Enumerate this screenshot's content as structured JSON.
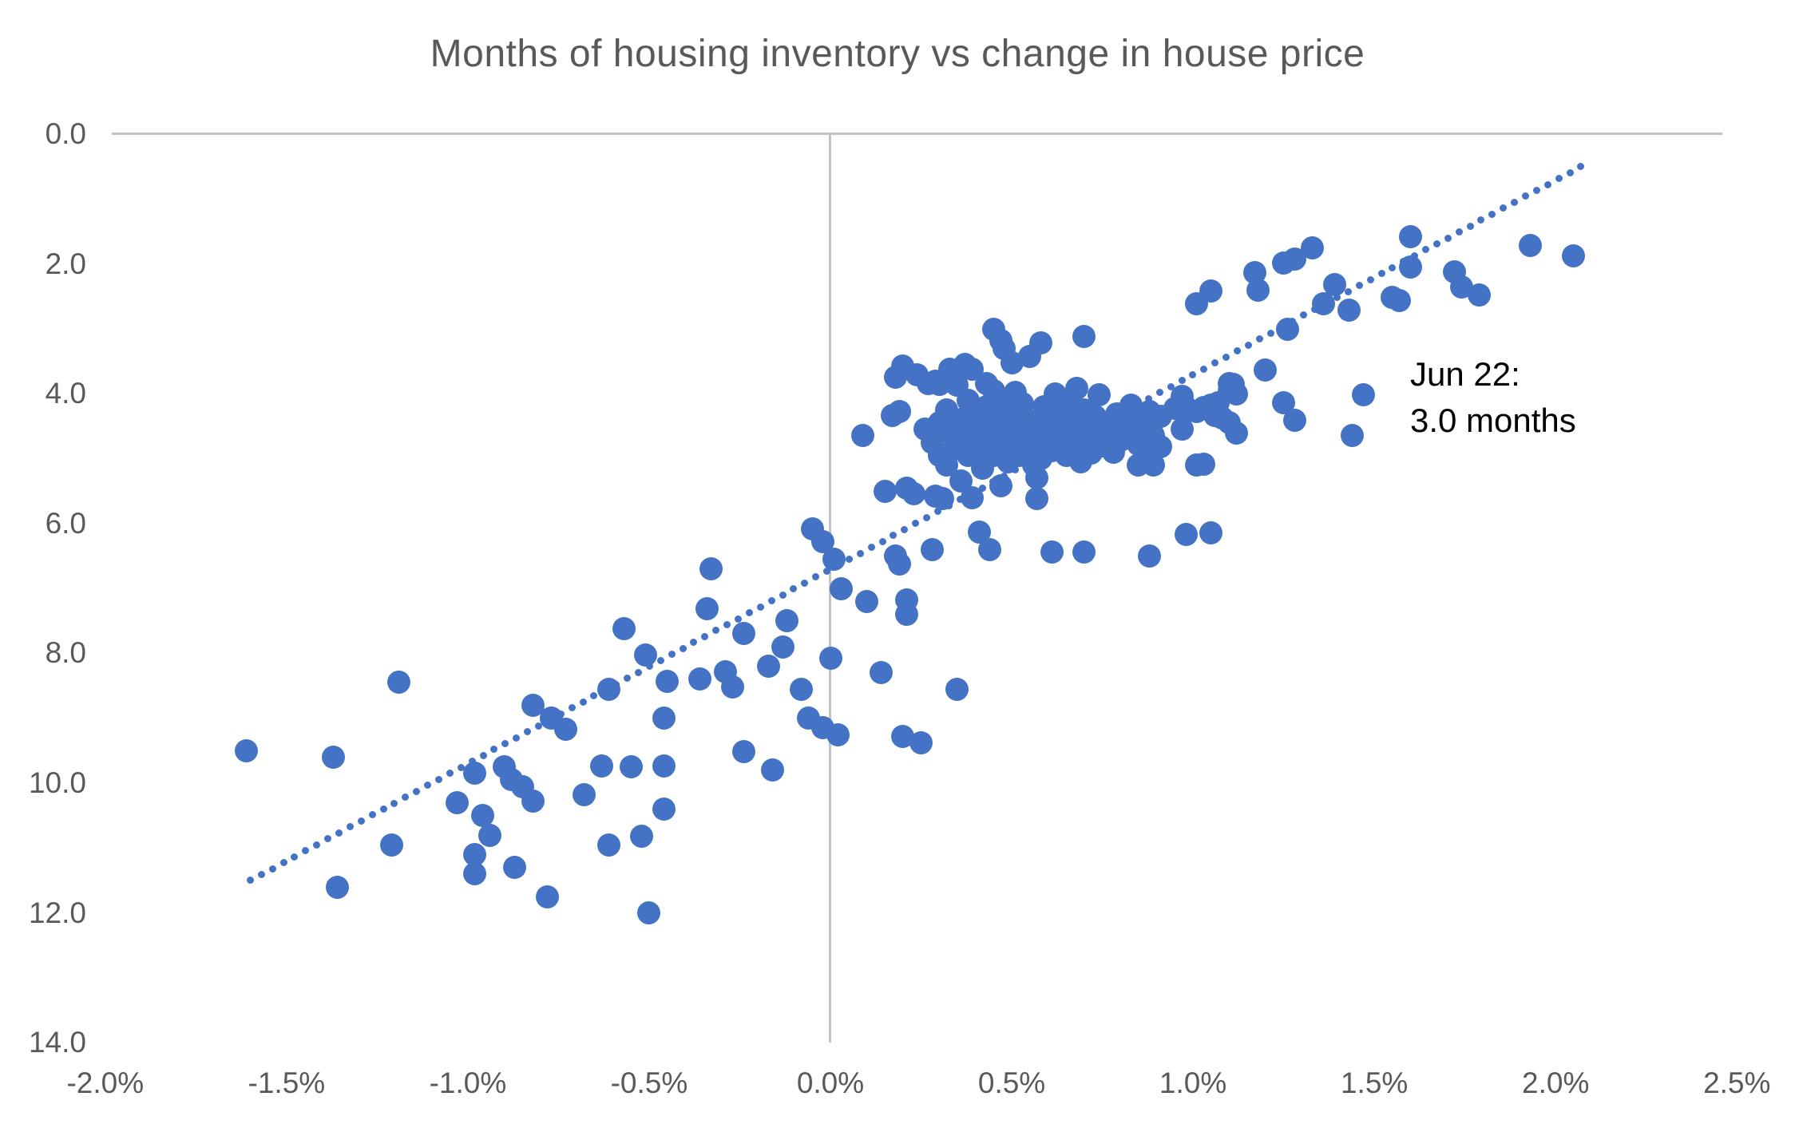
{
  "title": "Months of housing inventory vs change in house price",
  "annotation": {
    "line1": "Jun 22:",
    "line2": "3.0 months"
  },
  "colors": {
    "point": "#4472C4",
    "trendline": "#4472C4",
    "gridline": "#C3C3C3",
    "axis_labels": "#595959",
    "title": "#595959",
    "annotation": "#000000",
    "background": "#FFFFFF"
  },
  "chart_data": {
    "type": "scatter",
    "title": "Months of housing inventory vs change in house price",
    "xlabel": "",
    "ylabel": "",
    "legend": "none",
    "x_axis": {
      "unit": "percent change in house price",
      "min": -2.0,
      "max": 2.5,
      "ticks": [
        "-2.0%",
        "-1.5%",
        "-1.0%",
        "-0.5%",
        "0.0%",
        "0.5%",
        "1.0%",
        "1.5%",
        "2.0%",
        "2.5%"
      ]
    },
    "y_axis": {
      "unit": "months of inventory",
      "min": 0.0,
      "max": 14.0,
      "inverted": true,
      "ticks": [
        "0.0",
        "2.0",
        "4.0",
        "6.0",
        "8.0",
        "10.0",
        "12.0",
        "14.0"
      ]
    },
    "grid": "single gridline at y=0 and vertical line at x=0 only",
    "annotation": {
      "text": "Jun 22: 3.0 months",
      "anchor_x": 1.6,
      "anchor_y": 3.5
    },
    "trendline": {
      "style": "dotted",
      "x1": -1.6,
      "y1": 11.5,
      "x2": 2.07,
      "y2": 0.5
    },
    "points": [
      [
        -1.61,
        9.5
      ],
      [
        -1.37,
        9.6
      ],
      [
        -1.19,
        8.45
      ],
      [
        -1.36,
        11.6
      ],
      [
        -1.21,
        10.95
      ],
      [
        -1.03,
        10.3
      ],
      [
        -0.98,
        9.85
      ],
      [
        -0.98,
        11.1
      ],
      [
        -0.98,
        11.4
      ],
      [
        -0.96,
        10.5
      ],
      [
        -0.94,
        10.8
      ],
      [
        -0.9,
        9.75
      ],
      [
        -0.88,
        9.95
      ],
      [
        -0.85,
        10.05
      ],
      [
        -0.82,
        10.28
      ],
      [
        -0.87,
        11.3
      ],
      [
        -0.78,
        11.75
      ],
      [
        -0.82,
        8.8
      ],
      [
        -0.77,
        9.0
      ],
      [
        -0.73,
        9.17
      ],
      [
        -0.68,
        10.18
      ],
      [
        -0.63,
        9.74
      ],
      [
        -0.55,
        9.75
      ],
      [
        -0.61,
        10.95
      ],
      [
        -0.52,
        10.82
      ],
      [
        -0.5,
        12.0
      ],
      [
        -0.61,
        8.55
      ],
      [
        -0.57,
        7.62
      ],
      [
        -0.51,
        8.02
      ],
      [
        -0.45,
        8.43
      ],
      [
        -0.36,
        8.4
      ],
      [
        -0.46,
        9.0
      ],
      [
        -0.46,
        9.74
      ],
      [
        -0.46,
        10.4
      ],
      [
        -0.34,
        7.31
      ],
      [
        -0.33,
        6.7
      ],
      [
        -0.29,
        8.28
      ],
      [
        -0.27,
        8.52
      ],
      [
        -0.24,
        7.69
      ],
      [
        -0.24,
        9.52
      ],
      [
        -0.17,
        8.2
      ],
      [
        -0.16,
        9.8
      ],
      [
        -0.13,
        7.9
      ],
      [
        -0.12,
        7.5
      ],
      [
        -0.08,
        8.55
      ],
      [
        -0.06,
        9.0
      ],
      [
        -0.02,
        9.15
      ],
      [
        0.02,
        9.26
      ],
      [
        0.0,
        8.08
      ],
      [
        0.14,
        8.3
      ],
      [
        0.35,
        8.55
      ],
      [
        0.2,
        9.28
      ],
      [
        0.25,
        9.38
      ],
      [
        -0.05,
        6.08
      ],
      [
        -0.02,
        6.28
      ],
      [
        0.01,
        6.55
      ],
      [
        0.03,
        7.0
      ],
      [
        0.1,
        7.2
      ],
      [
        0.21,
        7.18
      ],
      [
        0.21,
        7.4
      ],
      [
        0.18,
        6.5
      ],
      [
        0.19,
        6.62
      ],
      [
        0.28,
        6.4
      ],
      [
        0.09,
        4.64
      ],
      [
        0.17,
        4.33
      ],
      [
        0.19,
        4.28
      ],
      [
        0.15,
        5.5
      ],
      [
        0.21,
        5.46
      ],
      [
        0.23,
        5.54
      ],
      [
        0.29,
        5.58
      ],
      [
        0.31,
        5.62
      ],
      [
        0.39,
        5.6
      ],
      [
        0.57,
        5.62
      ],
      [
        0.41,
        6.13
      ],
      [
        0.44,
        6.4
      ],
      [
        0.61,
        6.44
      ],
      [
        0.7,
        6.44
      ],
      [
        0.88,
        6.5
      ],
      [
        0.98,
        6.17
      ],
      [
        1.05,
        6.14
      ],
      [
        1.03,
        5.09
      ],
      [
        0.45,
        3.01
      ],
      [
        0.47,
        3.18
      ],
      [
        0.48,
        3.3
      ],
      [
        0.5,
        3.53
      ],
      [
        0.55,
        3.43
      ],
      [
        0.58,
        3.22
      ],
      [
        0.7,
        3.12
      ],
      [
        1.01,
        2.61
      ],
      [
        1.05,
        2.42
      ],
      [
        1.17,
        2.14
      ],
      [
        1.18,
        2.4
      ],
      [
        1.25,
        1.99
      ],
      [
        1.28,
        1.93
      ],
      [
        1.33,
        1.75
      ],
      [
        1.36,
        2.61
      ],
      [
        1.39,
        2.32
      ],
      [
        1.43,
        2.71
      ],
      [
        1.55,
        2.52
      ],
      [
        1.57,
        2.57
      ],
      [
        1.6,
        1.58
      ],
      [
        1.6,
        2.05
      ],
      [
        1.72,
        2.12
      ],
      [
        1.74,
        2.36
      ],
      [
        1.79,
        2.48
      ],
      [
        1.93,
        1.71
      ],
      [
        2.05,
        1.87
      ],
      [
        1.11,
        3.86
      ],
      [
        1.12,
        4.0
      ],
      [
        1.2,
        3.63
      ],
      [
        1.25,
        4.14
      ],
      [
        1.28,
        4.41
      ],
      [
        1.26,
        3.01
      ],
      [
        1.44,
        4.64
      ],
      [
        1.47,
        4.01
      ],
      [
        1.1,
        3.84
      ],
      [
        1.1,
        3.96
      ],
      [
        1.06,
        4.33
      ],
      [
        1.08,
        4.37
      ],
      [
        1.1,
        4.45
      ],
      [
        1.12,
        4.61
      ],
      [
        0.98,
        4.21
      ],
      [
        1.01,
        4.27
      ],
      [
        1.03,
        4.21
      ],
      [
        1.05,
        4.17
      ],
      [
        1.07,
        4.14
      ],
      [
        0.97,
        4.55
      ],
      [
        1.01,
        5.1
      ],
      [
        0.95,
        4.23
      ],
      [
        0.97,
        4.04
      ],
      [
        0.83,
        4.17
      ],
      [
        0.82,
        4.33
      ],
      [
        0.88,
        4.27
      ],
      [
        0.91,
        4.35
      ],
      [
        0.87,
        4.41
      ],
      [
        0.84,
        4.55
      ],
      [
        0.89,
        4.64
      ],
      [
        0.85,
        4.78
      ],
      [
        0.88,
        4.86
      ],
      [
        0.91,
        4.82
      ],
      [
        0.87,
        4.98
      ],
      [
        0.89,
        5.1
      ],
      [
        0.85,
        5.1
      ],
      [
        0.79,
        4.31
      ],
      [
        0.2,
        3.57
      ],
      [
        0.18,
        3.75
      ],
      [
        0.24,
        3.71
      ],
      [
        0.27,
        3.84
      ],
      [
        0.29,
        3.81
      ],
      [
        0.3,
        3.86
      ],
      [
        0.33,
        3.62
      ],
      [
        0.35,
        3.87
      ],
      [
        0.37,
        3.55
      ],
      [
        0.39,
        3.62
      ],
      [
        0.43,
        3.84
      ],
      [
        0.45,
        3.96
      ],
      [
        0.51,
        3.98
      ],
      [
        0.62,
        4.0
      ],
      [
        0.68,
        3.92
      ],
      [
        0.74,
        4.02
      ],
      [
        0.32,
        5.1
      ],
      [
        0.36,
        5.35
      ],
      [
        0.47,
        5.42
      ],
      [
        0.57,
        5.3
      ],
      [
        0.26,
        4.55
      ],
      [
        0.28,
        4.75
      ],
      [
        0.3,
        4.45
      ],
      [
        0.3,
        4.95
      ],
      [
        0.32,
        4.25
      ],
      [
        0.33,
        4.6
      ],
      [
        0.34,
        4.85
      ],
      [
        0.36,
        4.4
      ],
      [
        0.37,
        4.7
      ],
      [
        0.38,
        4.1
      ],
      [
        0.38,
        4.95
      ],
      [
        0.4,
        4.3
      ],
      [
        0.4,
        4.55
      ],
      [
        0.41,
        4.8
      ],
      [
        0.42,
        5.15
      ],
      [
        0.43,
        4.2
      ],
      [
        0.44,
        4.45
      ],
      [
        0.44,
        4.7
      ],
      [
        0.45,
        4.95
      ],
      [
        0.47,
        4.1
      ],
      [
        0.47,
        4.35
      ],
      [
        0.48,
        4.6
      ],
      [
        0.48,
        4.85
      ],
      [
        0.49,
        5.05
      ],
      [
        0.5,
        4.25
      ],
      [
        0.5,
        4.5
      ],
      [
        0.51,
        4.75
      ],
      [
        0.52,
        4.95
      ],
      [
        0.53,
        4.15
      ],
      [
        0.54,
        4.4
      ],
      [
        0.54,
        4.65
      ],
      [
        0.55,
        4.9
      ],
      [
        0.56,
        5.1
      ],
      [
        0.57,
        4.55
      ],
      [
        0.58,
        4.78
      ],
      [
        0.58,
        5.0
      ],
      [
        0.59,
        4.2
      ],
      [
        0.6,
        4.42
      ],
      [
        0.6,
        4.65
      ],
      [
        0.61,
        4.88
      ],
      [
        0.63,
        4.3
      ],
      [
        0.64,
        4.52
      ],
      [
        0.64,
        4.75
      ],
      [
        0.65,
        4.95
      ],
      [
        0.66,
        4.15
      ],
      [
        0.67,
        4.38
      ],
      [
        0.67,
        4.6
      ],
      [
        0.68,
        4.82
      ],
      [
        0.69,
        5.05
      ],
      [
        0.7,
        4.25
      ],
      [
        0.71,
        4.48
      ],
      [
        0.71,
        4.7
      ],
      [
        0.72,
        4.92
      ],
      [
        0.73,
        4.35
      ],
      [
        0.74,
        4.58
      ],
      [
        0.75,
        4.8
      ],
      [
        0.76,
        4.45
      ],
      [
        0.77,
        4.68
      ],
      [
        0.78,
        4.9
      ],
      [
        0.79,
        4.55
      ],
      [
        0.8,
        4.72
      ]
    ]
  }
}
